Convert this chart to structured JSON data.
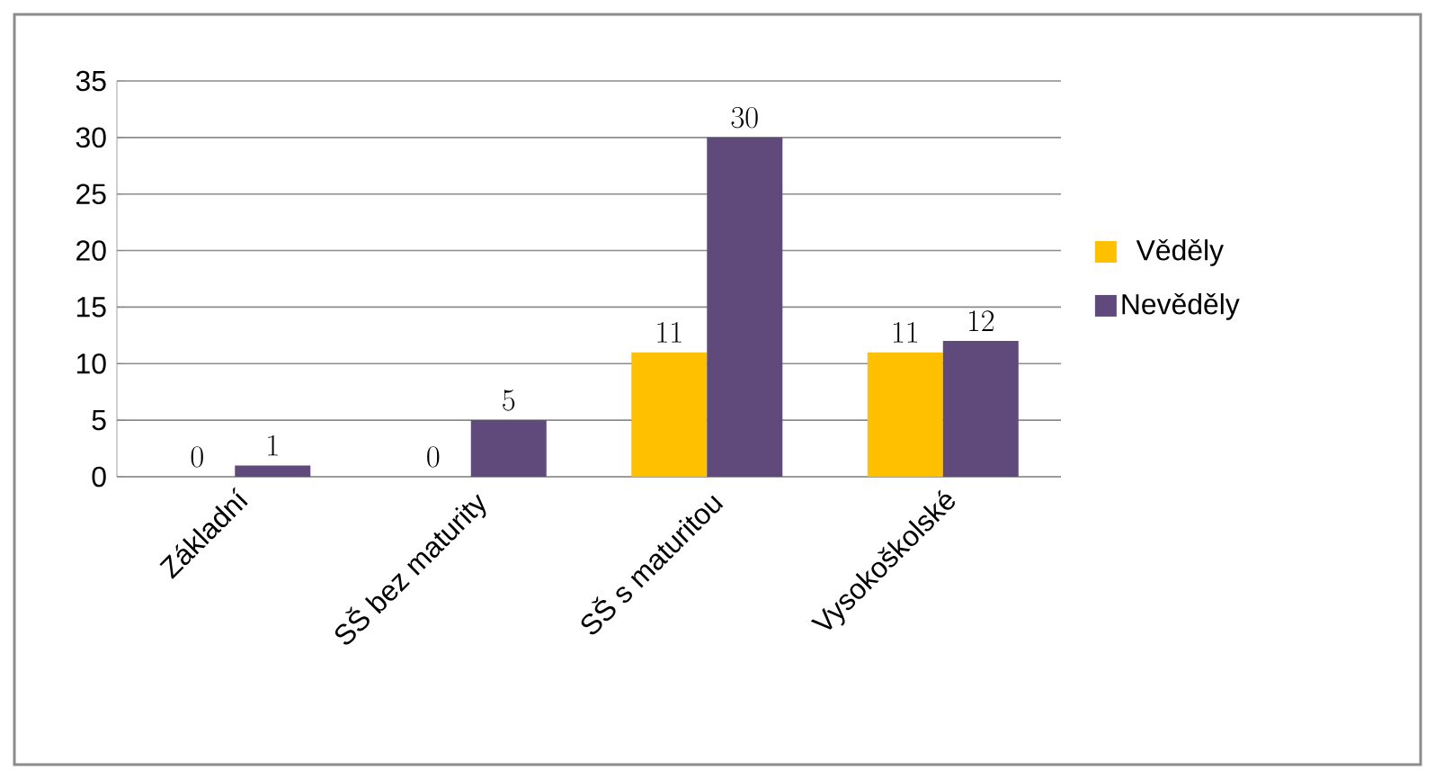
{
  "chart_data": {
    "type": "bar",
    "categories": [
      "Základní",
      "SŠ bez maturity",
      "SŠ s maturitou",
      "Vysokoškolské"
    ],
    "series": [
      {
        "name": "Věděly",
        "color": "#ffc000",
        "values": [
          0,
          0,
          11,
          11
        ]
      },
      {
        "name": "Nevěděly",
        "color": "#604a7b",
        "values": [
          1,
          5,
          30,
          12
        ]
      }
    ],
    "ylim": [
      0,
      35
    ],
    "yticks": [
      0,
      5,
      10,
      15,
      20,
      25,
      30,
      35
    ],
    "grid": "y",
    "legend": "right",
    "data_labels": true
  }
}
